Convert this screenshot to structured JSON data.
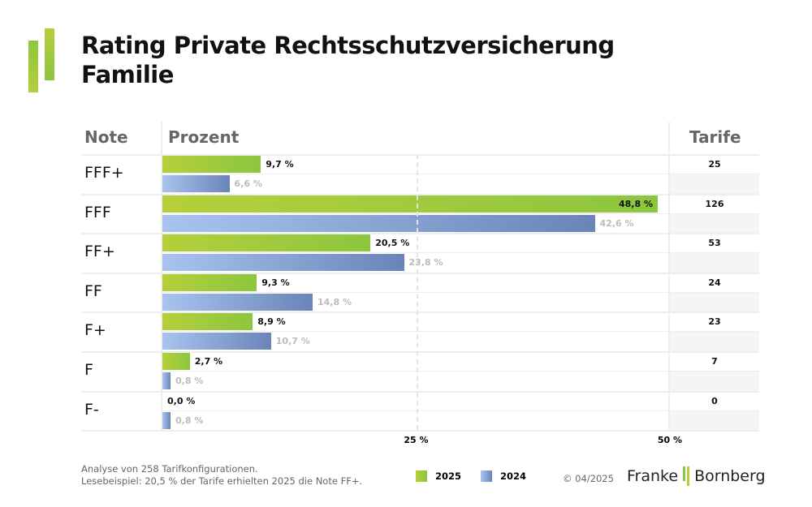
{
  "title": "Rating Private Rechtsschutzversicherung Familie",
  "headers": {
    "note": "Note",
    "prozent": "Prozent",
    "tarife": "Tarife"
  },
  "chart_data": {
    "type": "bar",
    "orientation": "horizontal",
    "categories": [
      "FFF+",
      "FFF",
      "FF+",
      "FF",
      "F+",
      "F",
      "F-"
    ],
    "series": [
      {
        "name": "2025",
        "values": [
          9.7,
          48.8,
          20.5,
          9.3,
          8.9,
          2.7,
          0.0
        ],
        "labels": [
          "9,7 %",
          "48,8 %",
          "20,5 %",
          "9,3 %",
          "8,9 %",
          "2,7 %",
          "0,0 %"
        ],
        "color": "#8cc63f"
      },
      {
        "name": "2024",
        "values": [
          6.6,
          42.6,
          23.8,
          14.8,
          10.7,
          0.8,
          0.8
        ],
        "labels": [
          "6,6 %",
          "42,6 %",
          "23,8 %",
          "14,8 %",
          "10,7 %",
          "0,8 %",
          "0,8 %"
        ],
        "color": "#6b84b8"
      }
    ],
    "tarife": [
      "25",
      "126",
      "53",
      "24",
      "23",
      "7",
      "0"
    ],
    "xlim": [
      0,
      50
    ],
    "xticks": [
      "25 %",
      "50 %"
    ],
    "xtick_values": [
      25,
      50
    ]
  },
  "footer": {
    "line1": "Analyse von 258 Tarifkonfigurationen.",
    "line2": "Lesebeispiel: 20,5 % der Tarife erhielten 2025 die Note FF+.",
    "legend": [
      "2025",
      "2024"
    ],
    "copyright": "© 04/2025",
    "brand_left": "Franke",
    "brand_right": "Bornberg"
  }
}
